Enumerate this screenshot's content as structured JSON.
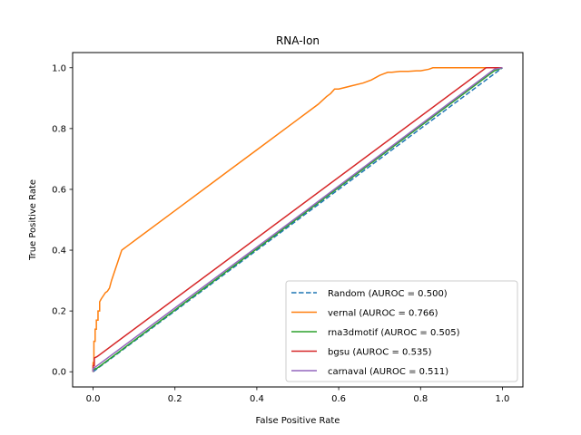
{
  "chart_data": {
    "type": "line",
    "title": "RNA-Ion",
    "xlabel": "False Positive Rate",
    "ylabel": "True Positive Rate",
    "xlim": [
      -0.05,
      1.05
    ],
    "ylim": [
      -0.05,
      1.05
    ],
    "xticks": [
      "0.0",
      "0.2",
      "0.4",
      "0.6",
      "0.8",
      "1.0"
    ],
    "yticks": [
      "0.0",
      "0.2",
      "0.4",
      "0.6",
      "0.8",
      "1.0"
    ],
    "grid": false,
    "legend_position": "lower right",
    "series": [
      {
        "name": "Random (AUROC = 0.500)",
        "color": "#1f77b4",
        "dashed": true,
        "x": [
          0,
          1
        ],
        "y": [
          0,
          1
        ]
      },
      {
        "name": "vernal (AUROC = 0.766)",
        "color": "#ff7f0e",
        "dashed": false,
        "x": [
          0,
          0.0,
          0.002,
          0.002,
          0.005,
          0.005,
          0.008,
          0.008,
          0.012,
          0.012,
          0.016,
          0.016,
          0.02,
          0.025,
          0.03,
          0.035,
          0.04,
          0.045,
          0.05,
          0.055,
          0.06,
          0.065,
          0.07,
          0.075,
          0.08,
          0.12,
          0.2,
          0.3,
          0.4,
          0.5,
          0.55,
          0.57,
          0.58,
          0.59,
          0.6,
          0.63,
          0.66,
          0.68,
          0.7,
          0.71,
          0.72,
          0.73,
          0.75,
          0.77,
          0.79,
          0.8,
          0.82,
          0.83,
          0.84,
          0.9,
          0.95,
          1.0
        ],
        "y": [
          0,
          0.03,
          0.03,
          0.1,
          0.1,
          0.14,
          0.14,
          0.17,
          0.17,
          0.2,
          0.2,
          0.23,
          0.24,
          0.25,
          0.26,
          0.265,
          0.275,
          0.3,
          0.32,
          0.34,
          0.36,
          0.38,
          0.4,
          0.405,
          0.41,
          0.45,
          0.53,
          0.63,
          0.73,
          0.83,
          0.88,
          0.905,
          0.915,
          0.93,
          0.93,
          0.94,
          0.95,
          0.96,
          0.975,
          0.98,
          0.985,
          0.985,
          0.988,
          0.988,
          0.99,
          0.99,
          0.995,
          1.0,
          1.0,
          1.0,
          1.0,
          1.0
        ]
      },
      {
        "name": "rna3dmotif (AUROC = 0.505)",
        "color": "#2ca02c",
        "dashed": false,
        "x": [
          0,
          0.0,
          0.01,
          0.5,
          0.98,
          1.0
        ],
        "y": [
          0,
          0.007,
          0.012,
          0.505,
          0.99,
          1.0
        ]
      },
      {
        "name": "bgsu (AUROC = 0.535)",
        "color": "#d62728",
        "dashed": false,
        "x": [
          0,
          0.0,
          0.003,
          0.003,
          0.01,
          0.96,
          0.98,
          1.0
        ],
        "y": [
          0,
          0.02,
          0.02,
          0.045,
          0.05,
          1.0,
          1.0,
          1.0
        ]
      },
      {
        "name": "carnaval (AUROC = 0.511)",
        "color": "#9467bd",
        "dashed": false,
        "x": [
          0,
          0.0,
          0.005,
          0.5,
          0.98,
          1.0
        ],
        "y": [
          0,
          0.01,
          0.015,
          0.51,
          0.995,
          1.0
        ]
      }
    ]
  }
}
